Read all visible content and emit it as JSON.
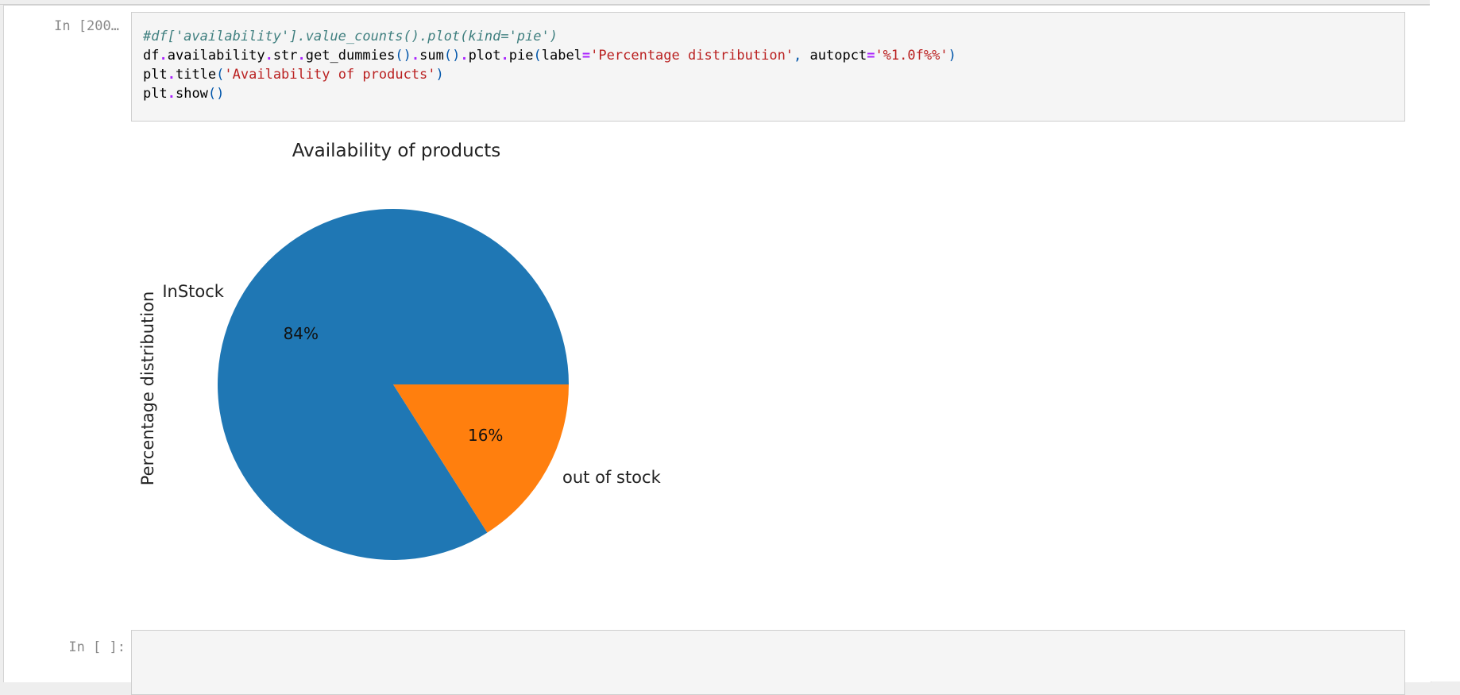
{
  "cells": [
    {
      "prompt": "In [200…",
      "code_lines": [
        [
          {
            "t": "#df['availability'].value_counts().plot(kind='pie')",
            "c": "c-comment"
          }
        ],
        [
          {
            "t": "df",
            "c": "c-var"
          },
          {
            "t": ".",
            "c": "c-op"
          },
          {
            "t": "availability",
            "c": "c-var"
          },
          {
            "t": ".",
            "c": "c-op"
          },
          {
            "t": "str",
            "c": "c-var"
          },
          {
            "t": ".",
            "c": "c-op"
          },
          {
            "t": "get_dummies",
            "c": "c-var"
          },
          {
            "t": "()",
            "c": "c-paren"
          },
          {
            "t": ".",
            "c": "c-op"
          },
          {
            "t": "sum",
            "c": "c-var"
          },
          {
            "t": "()",
            "c": "c-paren"
          },
          {
            "t": ".",
            "c": "c-op"
          },
          {
            "t": "plot",
            "c": "c-var"
          },
          {
            "t": ".",
            "c": "c-op"
          },
          {
            "t": "pie",
            "c": "c-var"
          },
          {
            "t": "(",
            "c": "c-paren"
          },
          {
            "t": "label",
            "c": "c-var"
          },
          {
            "t": "=",
            "c": "c-op"
          },
          {
            "t": "'Percentage distribution'",
            "c": "c-str"
          },
          {
            "t": ", ",
            "c": "c-paren"
          },
          {
            "t": "autopct",
            "c": "c-var"
          },
          {
            "t": "=",
            "c": "c-op"
          },
          {
            "t": "'%1.0f%%'",
            "c": "c-str"
          },
          {
            "t": ")",
            "c": "c-paren"
          }
        ],
        [
          {
            "t": "plt",
            "c": "c-var"
          },
          {
            "t": ".",
            "c": "c-op"
          },
          {
            "t": "title",
            "c": "c-var"
          },
          {
            "t": "(",
            "c": "c-paren"
          },
          {
            "t": "'Availability of products'",
            "c": "c-str"
          },
          {
            "t": ")",
            "c": "c-paren"
          }
        ],
        [
          {
            "t": "plt",
            "c": "c-var"
          },
          {
            "t": ".",
            "c": "c-op"
          },
          {
            "t": "show",
            "c": "c-var"
          },
          {
            "t": "()",
            "c": "c-paren"
          }
        ]
      ]
    },
    {
      "prompt": "In [ ]:",
      "code_lines": []
    }
  ],
  "chart_data": {
    "type": "pie",
    "title": "Availability of products",
    "ylabel": "Percentage distribution",
    "categories": [
      "InStock",
      "out of stock"
    ],
    "values": [
      84,
      16
    ],
    "labels_pct": [
      "84%",
      "16%"
    ],
    "colors": [
      "#1f77b4",
      "#ff7f0e"
    ]
  }
}
